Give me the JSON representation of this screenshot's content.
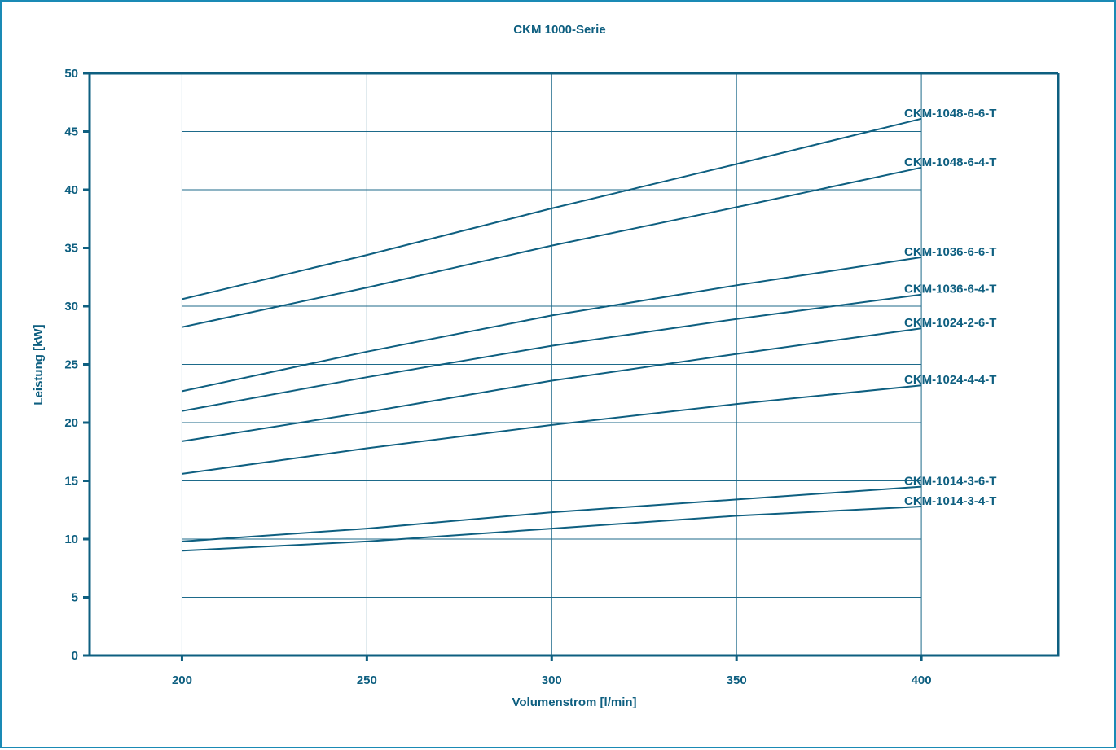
{
  "chart_data": {
    "type": "line",
    "title": "CKM 1000-Serie",
    "xlabel": "Volumenstrom [l/min]",
    "ylabel": "Leistung [kW]",
    "xlim": [
      175,
      437
    ],
    "ylim": [
      0,
      50
    ],
    "xticks": [
      200,
      250,
      300,
      350,
      400
    ],
    "yticks": [
      0,
      5,
      10,
      15,
      20,
      25,
      30,
      35,
      40,
      45,
      50
    ],
    "grid": true,
    "legend": "right-end-labels",
    "color": "#0e5f80",
    "series": [
      {
        "name": "CKM-1048-6-6-T",
        "x": [
          200,
          250,
          300,
          350,
          400
        ],
        "y": [
          30.6,
          34.4,
          38.4,
          42.2,
          46.1
        ]
      },
      {
        "name": "CKM-1048-6-4-T",
        "x": [
          200,
          250,
          300,
          350,
          400
        ],
        "y": [
          28.2,
          31.6,
          35.2,
          38.5,
          41.9
        ]
      },
      {
        "name": "CKM-1036-6-6-T",
        "x": [
          200,
          250,
          300,
          350,
          400
        ],
        "y": [
          22.7,
          26.1,
          29.2,
          31.8,
          34.2
        ]
      },
      {
        "name": "CKM-1036-6-4-T",
        "x": [
          200,
          250,
          300,
          350,
          400
        ],
        "y": [
          21.0,
          23.9,
          26.6,
          28.9,
          31.0
        ]
      },
      {
        "name": "CKM-1024-2-6-T",
        "x": [
          200,
          250,
          300,
          350,
          400
        ],
        "y": [
          18.4,
          20.9,
          23.6,
          25.9,
          28.1
        ]
      },
      {
        "name": "CKM-1024-4-4-T",
        "x": [
          200,
          250,
          300,
          350,
          400
        ],
        "y": [
          15.6,
          17.8,
          19.8,
          21.6,
          23.2
        ]
      },
      {
        "name": "CKM-1014-3-6-T",
        "x": [
          200,
          250,
          300,
          350,
          400
        ],
        "y": [
          9.8,
          10.9,
          12.3,
          13.4,
          14.5
        ]
      },
      {
        "name": "CKM-1014-3-4-T",
        "x": [
          200,
          250,
          300,
          350,
          400
        ],
        "y": [
          9.0,
          9.8,
          10.9,
          12.0,
          12.8
        ]
      }
    ]
  }
}
